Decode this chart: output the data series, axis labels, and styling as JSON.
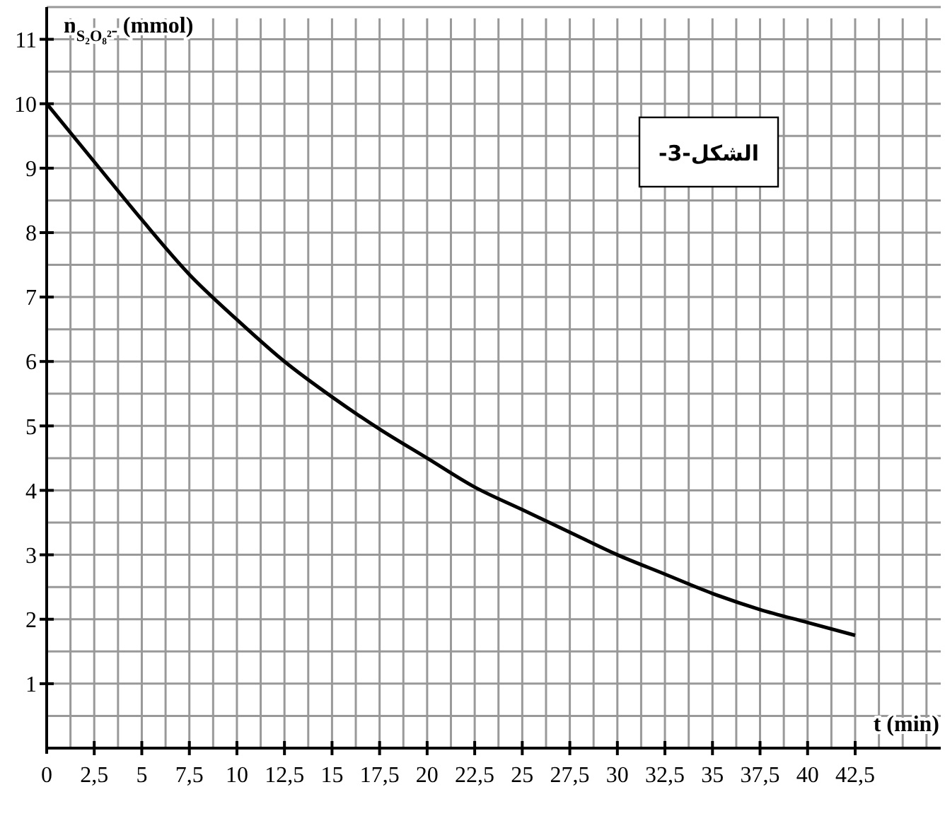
{
  "chart_data": {
    "type": "line",
    "xlabel": "t (min)",
    "ylabel": "n$_{S₂O₈²⁻}$ (mmol)",
    "annotations": [
      "الشكل-3-"
    ],
    "x": [
      0,
      2.5,
      5,
      7.5,
      10,
      12.5,
      15,
      17.5,
      20,
      22.5,
      25,
      27.5,
      30,
      32.5,
      35,
      37.5,
      40,
      42.5
    ],
    "series": [
      {
        "color": "#000000",
        "values": [
          10,
          9.1,
          8.2,
          7.35,
          6.65,
          6.0,
          5.45,
          4.95,
          4.5,
          4.05,
          3.7,
          3.35,
          3.0,
          2.7,
          2.4,
          2.15,
          1.95,
          1.75
        ]
      }
    ],
    "xlim": [
      0,
      47
    ],
    "ylim": [
      0,
      11.5
    ],
    "xticks": [
      {
        "value": 0,
        "label": "0"
      },
      {
        "value": 2.5,
        "label": "2,5"
      },
      5,
      {
        "value": 7.5,
        "label": "7,5"
      },
      10,
      {
        "value": 12.5,
        "label": "12,5"
      },
      15,
      {
        "value": 17.5,
        "label": "17,5"
      },
      20,
      {
        "value": 22.5,
        "label": "22,5"
      },
      25,
      {
        "value": 27.5,
        "label": "27,5"
      },
      30,
      {
        "value": 32.5,
        "label": "32,5"
      },
      35,
      {
        "value": 37.5,
        "label": "37,5"
      },
      40,
      {
        "value": 42.5,
        "label": "42,5"
      }
    ],
    "yticks": [
      1,
      2,
      3,
      4,
      5,
      6,
      7,
      8,
      9,
      10,
      11
    ],
    "grid": true,
    "line_style": "solid"
  }
}
